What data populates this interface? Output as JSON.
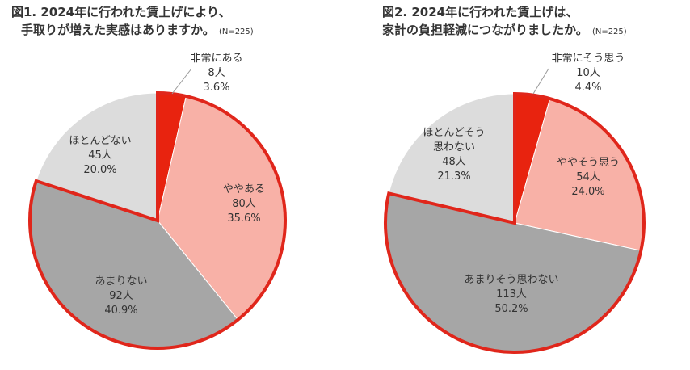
{
  "colors": {
    "red": "#e8230f",
    "pink": "#f8b1a7",
    "dark_gray": "#a6a6a6",
    "light_gray": "#dcdcdc",
    "outline": "#e0261b"
  },
  "chart_data": [
    {
      "type": "pie",
      "title_line1": "図1. 2024年に行われた賃上げにより、",
      "title_line2": "手取りが増えた実感はありますか。",
      "n_note": "(N=225)",
      "start": "12 o'clock, clockwise",
      "slices": [
        {
          "label": "非常にある",
          "count": "8人",
          "percent": "3.6%",
          "value": 3.6,
          "color": "#e8230f"
        },
        {
          "label": "ややある",
          "count": "80人",
          "percent": "35.6%",
          "value": 35.6,
          "color": "#f8b1a7"
        },
        {
          "label": "あまりない",
          "count": "92人",
          "percent": "40.9%",
          "value": 40.9,
          "color": "#a6a6a6"
        },
        {
          "label": "ほとんどない",
          "count": "45人",
          "percent": "20.0%",
          "value": 20.0,
          "color": "#dcdcdc"
        }
      ],
      "outlined_slices": [
        "非常にある",
        "ややある",
        "あまりない"
      ]
    },
    {
      "type": "pie",
      "title_line1": "図2. 2024年に行われた賃上げは、",
      "title_line2": "家計の負担軽減につながりましたか。",
      "n_note": "(N=225)",
      "start": "12 o'clock, clockwise",
      "slices": [
        {
          "label": "非常にそう思う",
          "count": "10人",
          "percent": "4.4%",
          "value": 4.4,
          "color": "#e8230f"
        },
        {
          "label": "ややそう思う",
          "count": "54人",
          "percent": "24.0%",
          "value": 24.0,
          "color": "#f8b1a7"
        },
        {
          "label": "あまりそう思わない",
          "count": "113人",
          "percent": "50.2%",
          "value": 50.2,
          "color": "#a6a6a6"
        },
        {
          "label": "ほとんどそう思わない",
          "label_lines": [
            "ほとんどそう",
            "思わない"
          ],
          "count": "48人",
          "percent": "21.3%",
          "value": 21.3,
          "color": "#dcdcdc"
        }
      ],
      "outlined_slices": [
        "非常にそう思う",
        "ややそう思う",
        "あまりそう思わない"
      ]
    }
  ]
}
